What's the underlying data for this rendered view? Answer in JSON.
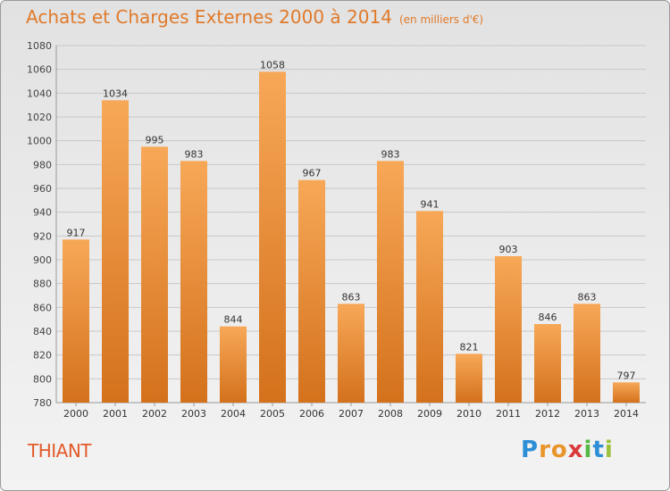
{
  "header": {
    "title": "Achats et Charges Externes 2000 à 2014",
    "unit": "(en milliers d'€)"
  },
  "footer": {
    "place": "THIANT",
    "brand": "Proxiti"
  },
  "colors": {
    "bar_light": "#f7a857",
    "bar_dark": "#d4711c",
    "title": "#e07a2a",
    "place": "#e35a2a"
  },
  "chart_data": {
    "type": "bar",
    "title": "Achats et Charges Externes 2000 à 2014",
    "subtitle": "(en milliers d'€)",
    "xlabel": "",
    "ylabel": "",
    "categories": [
      "2000",
      "2001",
      "2002",
      "2003",
      "2004",
      "2005",
      "2006",
      "2007",
      "2008",
      "2009",
      "2010",
      "2011",
      "2012",
      "2013",
      "2014"
    ],
    "values": [
      917,
      1034,
      995,
      983,
      844,
      1058,
      967,
      863,
      983,
      941,
      821,
      903,
      846,
      863,
      797
    ],
    "ylim": [
      780,
      1080
    ],
    "yticks": [
      780,
      800,
      820,
      840,
      860,
      880,
      900,
      920,
      940,
      960,
      980,
      1000,
      1020,
      1040,
      1060,
      1080
    ],
    "grid": true
  }
}
